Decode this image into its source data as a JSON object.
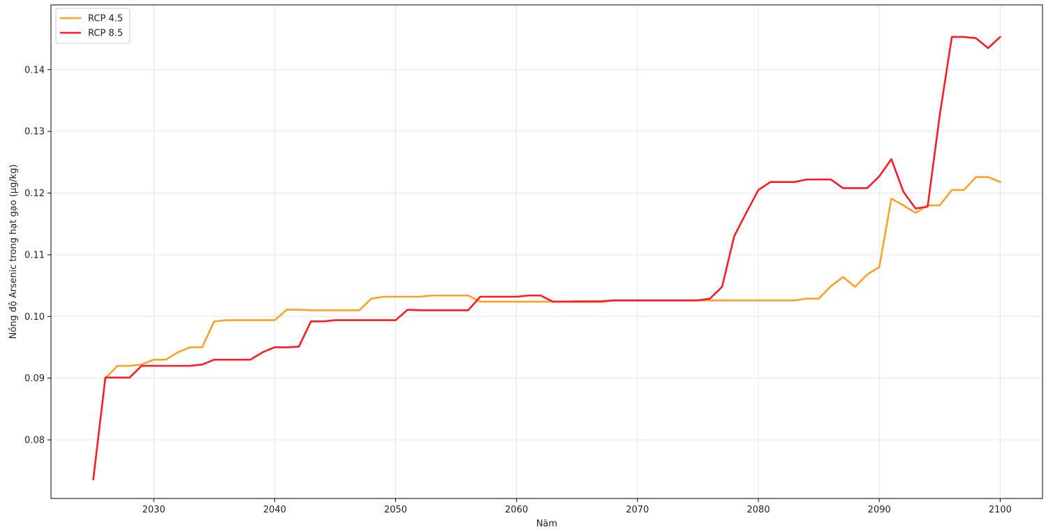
{
  "chart_data": {
    "type": "line",
    "xlabel": "Năm",
    "ylabel": "Nồng độ Arsenic trong hạt gạo (µg/kg)",
    "xlim": [
      2021.5,
      2103.5
    ],
    "ylim": [
      0.0705,
      0.1505
    ],
    "xticks": [
      2030,
      2040,
      2050,
      2060,
      2070,
      2080,
      2090,
      2100
    ],
    "yticks": [
      0.08,
      0.09,
      0.1,
      0.11,
      0.12,
      0.13,
      0.14
    ],
    "ytick_labels": [
      "0.08",
      "0.09",
      "0.10",
      "0.11",
      "0.12",
      "0.13",
      "0.14"
    ],
    "grid": true,
    "legend_position": "top-left",
    "series": [
      {
        "name": "RCP 4.5",
        "color": "#ffa126",
        "x": [
          2026,
          2027,
          2028,
          2029,
          2030,
          2031,
          2032,
          2033,
          2034,
          2035,
          2036,
          2037,
          2038,
          2039,
          2040,
          2041,
          2042,
          2043,
          2044,
          2045,
          2046,
          2047,
          2048,
          2049,
          2050,
          2051,
          2052,
          2053,
          2054,
          2055,
          2056,
          2057,
          2058,
          2059,
          2060,
          2061,
          2062,
          2063,
          2064,
          2065,
          2066,
          2067,
          2068,
          2069,
          2070,
          2071,
          2072,
          2073,
          2074,
          2075,
          2076,
          2077,
          2078,
          2079,
          2080,
          2081,
          2082,
          2083,
          2084,
          2085,
          2086,
          2087,
          2088,
          2089,
          2090,
          2091,
          2092,
          2093,
          2094,
          2095,
          2096,
          2097,
          2098,
          2099,
          2100
        ],
        "y": [
          0.09,
          0.092,
          0.092,
          0.0922,
          0.093,
          0.093,
          0.0942,
          0.095,
          0.095,
          0.0992,
          0.0994,
          0.0994,
          0.0994,
          0.0994,
          0.0994,
          0.1011,
          0.1011,
          0.101,
          0.101,
          0.101,
          0.101,
          0.101,
          0.1029,
          0.1032,
          0.1032,
          0.1032,
          0.1032,
          0.1034,
          0.1034,
          0.1034,
          0.1034,
          0.1024,
          0.1024,
          0.1024,
          0.1024,
          0.1024,
          0.1024,
          0.1024,
          0.1024,
          0.1025,
          0.1025,
          0.1025,
          0.1026,
          0.1026,
          0.1026,
          0.1026,
          0.1026,
          0.1026,
          0.1026,
          0.1026,
          0.1026,
          0.1026,
          0.1026,
          0.1026,
          0.1026,
          0.1026,
          0.1026,
          0.1026,
          0.1029,
          0.1029,
          0.1049,
          0.1064,
          0.1048,
          0.1068,
          0.108,
          0.1191,
          0.118,
          0.1168,
          0.118,
          0.118,
          0.1205,
          0.1205,
          0.1226,
          0.1226,
          0.1218
        ]
      },
      {
        "name": "RCP 8.5",
        "color": "#ff1a25",
        "x": [
          2025,
          2026,
          2027,
          2028,
          2029,
          2030,
          2031,
          2032,
          2033,
          2034,
          2035,
          2036,
          2037,
          2038,
          2039,
          2040,
          2041,
          2042,
          2043,
          2044,
          2045,
          2046,
          2047,
          2048,
          2049,
          2050,
          2051,
          2052,
          2053,
          2054,
          2055,
          2056,
          2057,
          2058,
          2059,
          2060,
          2061,
          2062,
          2063,
          2064,
          2065,
          2066,
          2067,
          2068,
          2069,
          2070,
          2071,
          2072,
          2073,
          2074,
          2075,
          2076,
          2077,
          2078,
          2079,
          2080,
          2081,
          2082,
          2083,
          2084,
          2085,
          2086,
          2087,
          2088,
          2089,
          2090,
          2091,
          2092,
          2093,
          2094,
          2095,
          2096,
          2097,
          2098,
          2099,
          2100
        ],
        "y": [
          0.0736,
          0.0901,
          0.0901,
          0.0901,
          0.092,
          0.092,
          0.092,
          0.092,
          0.092,
          0.0922,
          0.093,
          0.093,
          0.093,
          0.093,
          0.0942,
          0.095,
          0.095,
          0.0951,
          0.0992,
          0.0992,
          0.0994,
          0.0994,
          0.0994,
          0.0994,
          0.0994,
          0.0994,
          0.1011,
          0.101,
          0.101,
          0.101,
          0.101,
          0.101,
          0.1032,
          0.1032,
          0.1032,
          0.1032,
          0.1034,
          0.1034,
          0.1024,
          0.1024,
          0.1024,
          0.1024,
          0.1024,
          0.1026,
          0.1026,
          0.1026,
          0.1026,
          0.1026,
          0.1026,
          0.1026,
          0.1026,
          0.1029,
          0.1048,
          0.113,
          0.1168,
          0.1205,
          0.1218,
          0.1218,
          0.1218,
          0.1222,
          0.1222,
          0.1222,
          0.1208,
          0.1208,
          0.1208,
          0.1227,
          0.1255,
          0.1202,
          0.1175,
          0.1178,
          0.1326,
          0.1453,
          0.1453,
          0.1451,
          0.1435,
          0.1453
        ]
      }
    ]
  }
}
